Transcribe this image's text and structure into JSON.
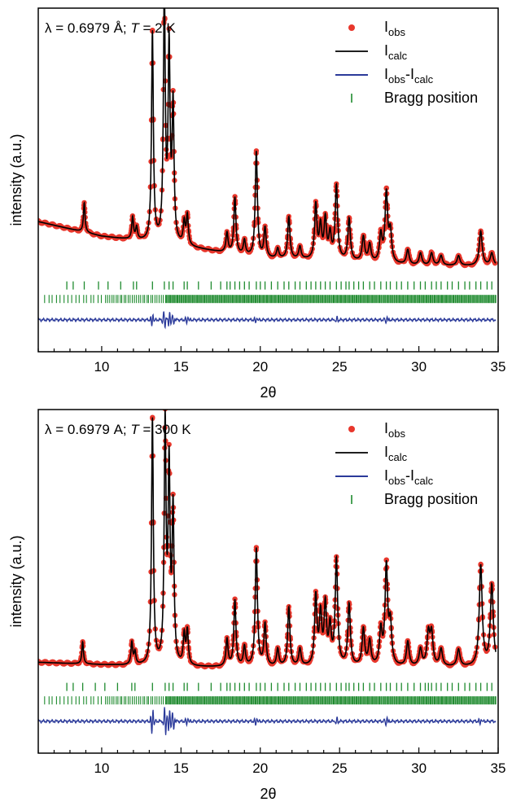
{
  "colors": {
    "observed": "#e8372c",
    "calculated": "#000000",
    "difference": "#2b3a9a",
    "bragg": "#1e8a2e",
    "frame": "#000000"
  },
  "chart_data": [
    {
      "type": "line",
      "annotation_prefix": "λ = 0.6979 Å; ",
      "annotation_var": "T",
      "annotation_suffix": " = 2 K",
      "xlabel_symbol": "2θ",
      "ylabel": "intensity (a.u.)",
      "xlim": [
        6,
        35
      ],
      "ylim": [
        -0.35,
        1.05
      ],
      "xticks": [
        10,
        15,
        20,
        25,
        30,
        35
      ],
      "grid": false,
      "legend_position": "top-right",
      "legend": [
        {
          "main": "I",
          "sub": "obs"
        },
        {
          "main": "I",
          "sub": "calc"
        },
        {
          "main": "I",
          "sub": "obs",
          "mid": "-I",
          "sub2": "calc"
        },
        {
          "main": "Bragg position",
          "sub": ""
        }
      ],
      "background": [
        [
          6,
          0.18
        ],
        [
          10,
          0.12
        ],
        [
          15,
          0.08
        ],
        [
          20,
          0.03
        ],
        [
          25,
          0.02
        ],
        [
          30,
          0.0
        ],
        [
          34.8,
          0.0
        ]
      ],
      "peaks": [
        [
          8.9,
          0.12
        ],
        [
          11.95,
          0.09
        ],
        [
          12.2,
          0.05
        ],
        [
          13.2,
          0.85
        ],
        [
          13.95,
          1.0
        ],
        [
          14.25,
          0.78
        ],
        [
          14.5,
          0.55
        ],
        [
          15.2,
          0.09
        ],
        [
          15.4,
          0.12
        ],
        [
          17.9,
          0.08
        ],
        [
          18.4,
          0.23
        ],
        [
          19.0,
          0.06
        ],
        [
          19.75,
          0.43
        ],
        [
          20.3,
          0.12
        ],
        [
          21.1,
          0.04
        ],
        [
          21.8,
          0.17
        ],
        [
          22.5,
          0.05
        ],
        [
          23.5,
          0.22
        ],
        [
          23.8,
          0.13
        ],
        [
          24.1,
          0.16
        ],
        [
          24.4,
          0.1
        ],
        [
          24.8,
          0.3
        ],
        [
          25.6,
          0.17
        ],
        [
          26.5,
          0.1
        ],
        [
          26.9,
          0.07
        ],
        [
          27.6,
          0.11
        ],
        [
          27.95,
          0.28
        ],
        [
          28.2,
          0.12
        ],
        [
          29.3,
          0.06
        ],
        [
          30.1,
          0.05
        ],
        [
          30.8,
          0.05
        ],
        [
          31.4,
          0.04
        ],
        [
          32.5,
          0.04
        ],
        [
          33.9,
          0.14
        ],
        [
          34.6,
          0.05
        ]
      ],
      "bragg_row1": [
        7.8,
        8.2,
        8.9,
        9.8,
        10.4,
        11.2,
        12.0,
        12.2,
        13.2,
        13.95,
        14.25,
        14.5,
        15.2,
        15.4,
        16.1,
        16.9,
        17.5,
        17.9,
        18.1,
        18.4,
        18.7,
        19.0,
        19.3,
        19.75,
        20.0,
        20.3,
        20.7,
        21.1,
        21.5,
        21.8,
        22.2,
        22.5,
        22.9,
        23.2,
        23.5,
        23.8,
        24.1,
        24.4,
        24.8,
        25.1,
        25.4,
        25.6,
        25.9,
        26.2,
        26.5,
        26.9,
        27.2,
        27.6,
        27.95,
        28.2,
        28.6,
        28.9,
        29.3,
        29.7,
        30.1,
        30.4,
        30.8,
        31.1,
        31.4,
        31.8,
        32.1,
        32.5,
        32.9,
        33.2,
        33.6,
        33.9,
        34.3,
        34.6
      ],
      "bragg_row2_start": 6.4,
      "bragg_row2_end": 34.9,
      "diff_features": [
        [
          13.2,
          0.03
        ],
        [
          13.95,
          -0.04
        ],
        [
          14.25,
          0.035
        ],
        [
          14.5,
          -0.02
        ],
        [
          15.4,
          0.02
        ],
        [
          19.75,
          0.015
        ],
        [
          24.8,
          0.012
        ],
        [
          27.95,
          0.015
        ]
      ]
    },
    {
      "type": "line",
      "annotation_prefix": "λ = 0.6979 A; ",
      "annotation_var": "T",
      "annotation_suffix": " = 300 K",
      "xlabel_symbol": "2θ",
      "ylabel": "intensity (a.u.)",
      "xlim": [
        6,
        35
      ],
      "ylim": [
        -0.35,
        1.05
      ],
      "xticks": [
        10,
        15,
        20,
        25,
        30,
        35
      ],
      "grid": false,
      "legend_position": "top-right",
      "legend": [
        {
          "main": "I",
          "sub": "obs"
        },
        {
          "main": "I",
          "sub": "calc"
        },
        {
          "main": "I",
          "sub": "obs",
          "mid": "-I",
          "sub2": "calc"
        },
        {
          "main": "Bragg position",
          "sub": ""
        }
      ],
      "background": [
        [
          6,
          0.02
        ],
        [
          10,
          0.01
        ],
        [
          15,
          0.0
        ],
        [
          20,
          0.0
        ],
        [
          25,
          0.0
        ],
        [
          30,
          0.0
        ],
        [
          34.8,
          0.0
        ]
      ],
      "peaks": [
        [
          8.8,
          0.09
        ],
        [
          11.9,
          0.09
        ],
        [
          12.1,
          0.05
        ],
        [
          13.2,
          1.0
        ],
        [
          14.0,
          0.97
        ],
        [
          14.25,
          0.78
        ],
        [
          14.5,
          0.62
        ],
        [
          15.2,
          0.12
        ],
        [
          15.4,
          0.14
        ],
        [
          17.9,
          0.11
        ],
        [
          18.4,
          0.27
        ],
        [
          19.0,
          0.08
        ],
        [
          19.75,
          0.48
        ],
        [
          20.3,
          0.17
        ],
        [
          21.1,
          0.07
        ],
        [
          21.8,
          0.24
        ],
        [
          22.5,
          0.07
        ],
        [
          23.5,
          0.28
        ],
        [
          23.8,
          0.2
        ],
        [
          24.1,
          0.24
        ],
        [
          24.4,
          0.15
        ],
        [
          24.8,
          0.43
        ],
        [
          25.6,
          0.25
        ],
        [
          26.5,
          0.15
        ],
        [
          26.9,
          0.1
        ],
        [
          27.6,
          0.14
        ],
        [
          27.95,
          0.4
        ],
        [
          28.2,
          0.16
        ],
        [
          29.3,
          0.1
        ],
        [
          30.1,
          0.07
        ],
        [
          30.6,
          0.13
        ],
        [
          30.8,
          0.13
        ],
        [
          31.4,
          0.07
        ],
        [
          32.5,
          0.07
        ],
        [
          33.9,
          0.41
        ],
        [
          34.6,
          0.33
        ]
      ],
      "bragg_row1": [
        7.8,
        8.2,
        8.8,
        9.6,
        10.2,
        11.0,
        11.9,
        12.1,
        13.2,
        14.0,
        14.25,
        14.5,
        15.2,
        15.4,
        16.1,
        16.9,
        17.5,
        17.9,
        18.1,
        18.4,
        18.7,
        19.0,
        19.3,
        19.75,
        20.0,
        20.3,
        20.7,
        21.1,
        21.5,
        21.8,
        22.2,
        22.5,
        22.9,
        23.2,
        23.5,
        23.8,
        24.1,
        24.4,
        24.8,
        25.1,
        25.4,
        25.6,
        25.9,
        26.2,
        26.5,
        26.9,
        27.2,
        27.6,
        27.95,
        28.2,
        28.6,
        28.9,
        29.3,
        29.7,
        30.1,
        30.4,
        30.6,
        30.8,
        31.1,
        31.4,
        31.8,
        32.1,
        32.5,
        32.9,
        33.2,
        33.6,
        33.9,
        34.3,
        34.6
      ],
      "bragg_row2_start": 6.4,
      "bragg_row2_end": 34.9,
      "diff_features": [
        [
          13.2,
          0.06
        ],
        [
          14.0,
          -0.06
        ],
        [
          14.25,
          0.05
        ],
        [
          14.5,
          -0.04
        ],
        [
          15.4,
          0.02
        ],
        [
          19.75,
          0.02
        ],
        [
          24.8,
          0.015
        ],
        [
          27.95,
          0.02
        ],
        [
          33.9,
          0.015
        ]
      ]
    }
  ]
}
